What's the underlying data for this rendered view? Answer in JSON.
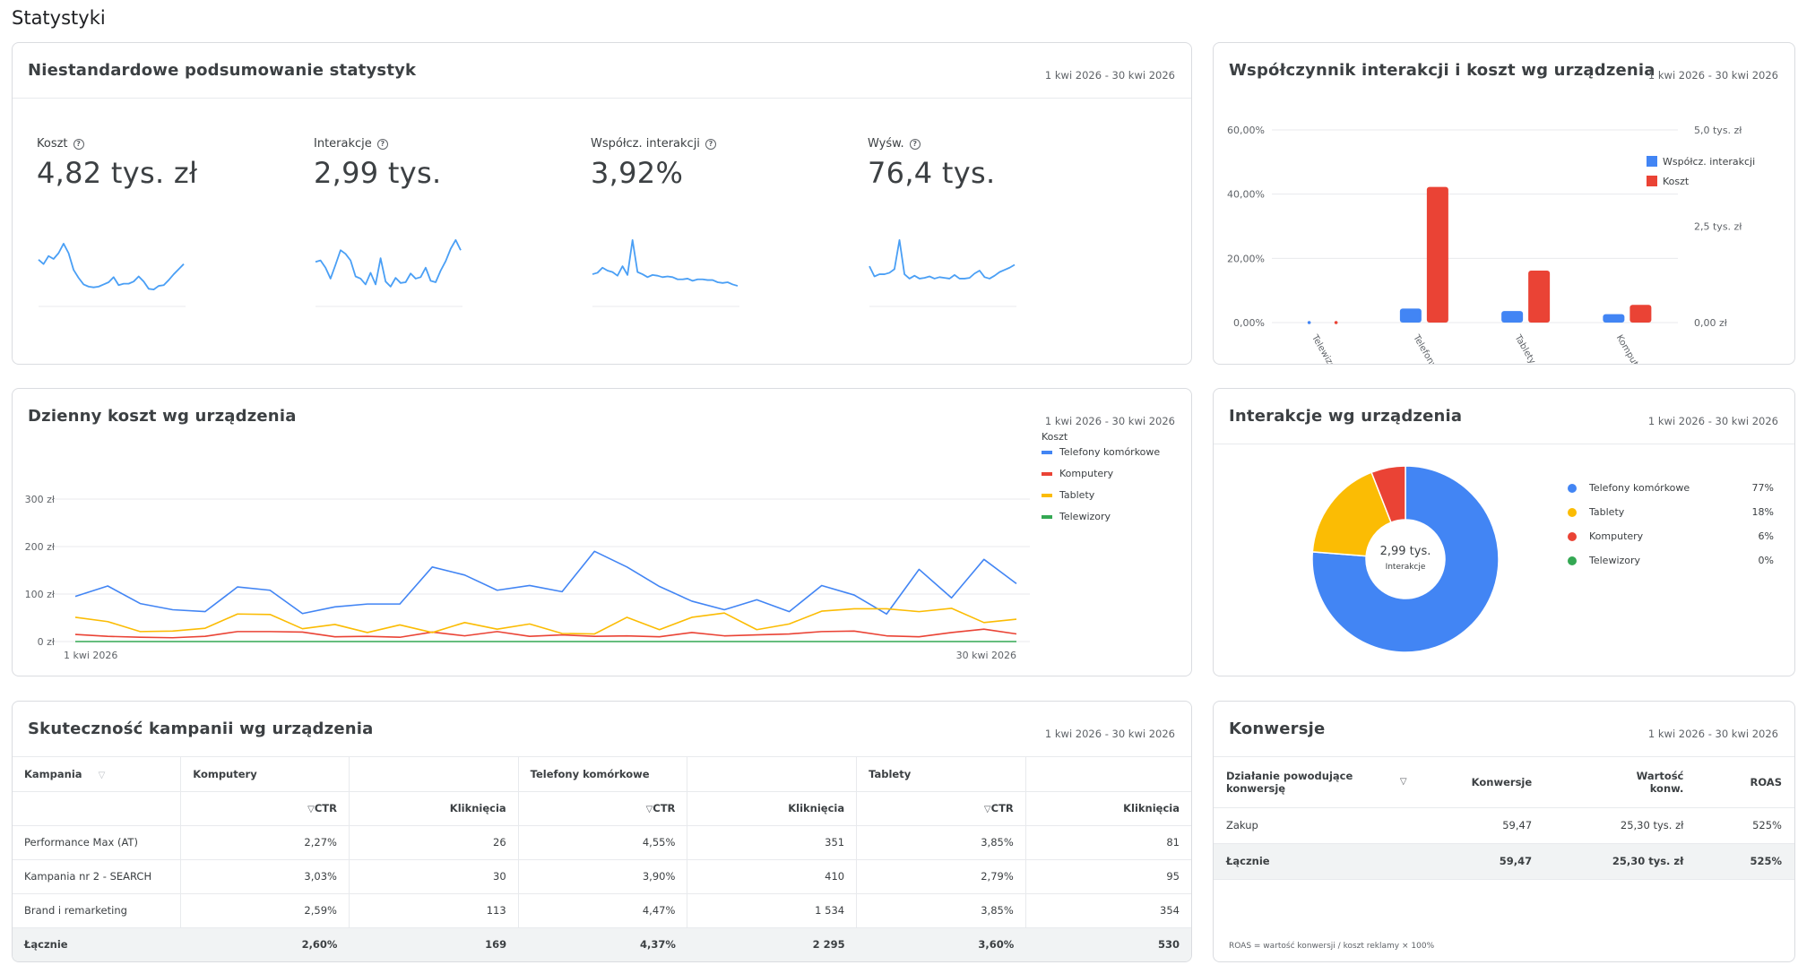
{
  "page": {
    "title": "Statystyki"
  },
  "summary": {
    "title": "Niestandardowe podsumowanie statystyk",
    "date": "1 kwi 2026 - 30 kwi 2026",
    "metrics": [
      {
        "label": "Koszt",
        "value": "4,82 tys. zł"
      },
      {
        "label": "Interakcje",
        "value": "2,99 tys."
      },
      {
        "label": "Współcz. interakcji",
        "value": "3,92%"
      },
      {
        "label": "Wyśw.",
        "value": "76,4 tys."
      }
    ]
  },
  "device_bar": {
    "title": "Współczynnik interakcji i koszt wg urządzenia",
    "date": "1 kwi 2026 - 30 kwi 2026"
  },
  "daily_cost": {
    "title": "Dzienny koszt wg urządzenia",
    "date": "1 kwi 2026 - 30 kwi 2026",
    "legend_title": "Koszt"
  },
  "interactions": {
    "title": "Interakcje wg urządzenia",
    "date": "1 kwi 2026 - 30 kwi 2026",
    "center_value": "2,99 tys.",
    "center_label": "Interakcje",
    "legend": [
      {
        "name": "Telefony komórkowe",
        "pct": "77%",
        "color": "#4285f4"
      },
      {
        "name": "Tablety",
        "pct": "18%",
        "color": "#fbbc04"
      },
      {
        "name": "Komputery",
        "pct": "6%",
        "color": "#ea4335"
      },
      {
        "name": "Telewizory",
        "pct": "0%",
        "color": "#34a853"
      }
    ]
  },
  "campaigns": {
    "title": "Skuteczność kampanii wg urządzenia",
    "date": "1 kwi 2026 - 30 kwi 2026",
    "header_campaign": "Kampania",
    "groups": [
      "Komputery",
      "Telefony komórkowe",
      "Tablety"
    ],
    "col_ctr": "CTR",
    "col_clicks": "Kliknięcia",
    "rows": [
      {
        "name": "Performance Max (AT)",
        "cells": [
          "2,27%",
          "26",
          "4,55%",
          "351",
          "3,85%",
          "81"
        ]
      },
      {
        "name": "Kampania nr 2 - SEARCH",
        "cells": [
          "3,03%",
          "30",
          "3,90%",
          "410",
          "2,79%",
          "95"
        ]
      },
      {
        "name": "Brand i remarketing",
        "cells": [
          "2,59%",
          "113",
          "4,47%",
          "1 534",
          "3,85%",
          "354"
        ]
      }
    ],
    "total": {
      "name": "Łącznie",
      "cells": [
        "2,60%",
        "169",
        "4,37%",
        "2 295",
        "3,60%",
        "530"
      ]
    }
  },
  "conversions": {
    "title": "Konwersje",
    "date": "1 kwi 2026 - 30 kwi 2026",
    "headers": [
      "Działanie powodujące konwersję",
      "Konwersje",
      "Wartość konw.",
      "ROAS"
    ],
    "rows": [
      [
        "Zakup",
        "59,47",
        "25,30 tys. zł",
        "525%"
      ]
    ],
    "total": [
      "Łącznie",
      "59,47",
      "25,30 tys. zł",
      "525%"
    ],
    "footnote": "ROAS = wartość konwersji / koszt reklamy × 100%"
  },
  "chart_data": [
    {
      "type": "line",
      "title": "Koszt",
      "y": [
        7.7,
        7.1,
        8.2,
        7.8,
        8.6,
        9.9,
        8.6,
        6.3,
        5.2,
        4.3,
        4.0,
        3.9,
        4.0,
        4.3,
        4.6,
        5.3,
        4.2,
        4.4,
        4.4,
        4.7,
        5.4,
        4.7,
        3.7,
        3.6,
        4.1,
        4.2,
        4.9,
        5.7,
        6.4,
        7.1
      ]
    },
    {
      "type": "line",
      "title": "Interakcje",
      "y": [
        7.4,
        7.6,
        6.6,
        5.1,
        7.0,
        9.0,
        8.5,
        7.6,
        5.4,
        5.1,
        4.3,
        5.9,
        4.3,
        7.9,
        4.7,
        4.0,
        5.2,
        4.5,
        4.6,
        5.8,
        5.1,
        5.3,
        6.6,
        4.8,
        4.6,
        6.2,
        7.5,
        9.2,
        10.4,
        9.0
      ]
    },
    {
      "type": "line",
      "title": "Współcz. interakcji",
      "y": [
        5.7,
        5.9,
        6.6,
        6.2,
        6.0,
        5.5,
        6.8,
        5.6,
        10.4,
        6.0,
        5.7,
        5.3,
        5.6,
        5.5,
        5.3,
        5.4,
        5.3,
        5.0,
        5.0,
        5.1,
        4.8,
        5.0,
        5.0,
        4.9,
        4.9,
        4.6,
        4.5,
        4.6,
        4.3,
        4.1
      ]
    },
    {
      "type": "line",
      "title": "Wyśw.",
      "y": [
        6.8,
        5.4,
        5.7,
        5.7,
        5.9,
        6.4,
        10.4,
        5.7,
        5.1,
        5.5,
        5.1,
        5.2,
        5.4,
        5.1,
        5.3,
        5.2,
        5.1,
        5.6,
        5.1,
        5.1,
        5.2,
        5.8,
        6.2,
        5.3,
        5.1,
        5.5,
        6.0,
        6.3,
        6.6,
        7.0
      ]
    },
    {
      "type": "bar",
      "title": "Współczynnik interakcji i koszt wg urządzenia",
      "categories": [
        "Telewizory",
        "Telefony k.",
        "Tablety",
        "Komputery"
      ],
      "series": [
        {
          "name": "Współcz. interakcji",
          "axis": "left",
          "color": "#4285f4",
          "values": [
            0,
            4.37,
            3.6,
            2.6
          ]
        },
        {
          "name": "Koszt",
          "axis": "right",
          "color": "#ea4335",
          "values": [
            0,
            3.52,
            1.35,
            0.46
          ]
        }
      ],
      "y_left": {
        "ticks": [
          "0,00%",
          "20,00%",
          "40,00%",
          "60,00%"
        ],
        "ylim": [
          0,
          60
        ]
      },
      "y_right": {
        "ticks": [
          "0,00 zł",
          "2,5 tys. zł",
          "5,0 tys. zł"
        ],
        "ylim": [
          0,
          5
        ]
      },
      "legend": "top-right"
    },
    {
      "type": "line",
      "title": "Dzienny koszt wg urządzenia",
      "x_labels": [
        "1 kwi 2026",
        "30 kwi 2026"
      ],
      "y_ticks": [
        "0 zł",
        "100 zł",
        "200 zł",
        "300 zł"
      ],
      "ylim": [
        0,
        300
      ],
      "grid": true,
      "legend": "right",
      "series": [
        {
          "name": "Telefony komórkowe",
          "color": "#4285f4",
          "values": [
            95,
            117,
            80,
            67,
            63,
            115,
            108,
            59,
            73,
            79,
            79,
            157,
            140,
            108,
            118,
            105,
            190,
            157,
            116,
            85,
            67,
            88,
            63,
            118,
            98,
            58,
            152,
            92,
            173,
            122
          ]
        },
        {
          "name": "Komputery",
          "color": "#ea4335",
          "values": [
            15,
            11,
            9,
            8,
            11,
            21,
            21,
            20,
            10,
            11,
            9,
            20,
            12,
            21,
            11,
            14,
            11,
            12,
            10,
            19,
            12,
            14,
            16,
            21,
            22,
            12,
            10,
            19,
            26,
            16
          ]
        },
        {
          "name": "Tablety",
          "color": "#fbbc04",
          "values": [
            51,
            42,
            21,
            22,
            28,
            58,
            57,
            27,
            36,
            19,
            35,
            19,
            40,
            26,
            37,
            17,
            16,
            51,
            25,
            51,
            60,
            25,
            37,
            64,
            69,
            69,
            63,
            70,
            40,
            47
          ]
        },
        {
          "name": "Telewizory",
          "color": "#34a853",
          "values": [
            0,
            0,
            0,
            0,
            0,
            0,
            0,
            0,
            0,
            0,
            0,
            0,
            0,
            0,
            0,
            0,
            0,
            0,
            0,
            0,
            0,
            0,
            0,
            0,
            0,
            0,
            0,
            0,
            0,
            0
          ]
        }
      ]
    },
    {
      "type": "pie",
      "title": "Interakcje wg urządzenia",
      "categories": [
        "Telefony komórkowe",
        "Tablety",
        "Komputery",
        "Telewizory"
      ],
      "values": [
        77,
        18,
        6,
        0
      ],
      "colors": [
        "#4285f4",
        "#fbbc04",
        "#ea4335",
        "#34a853"
      ]
    }
  ]
}
